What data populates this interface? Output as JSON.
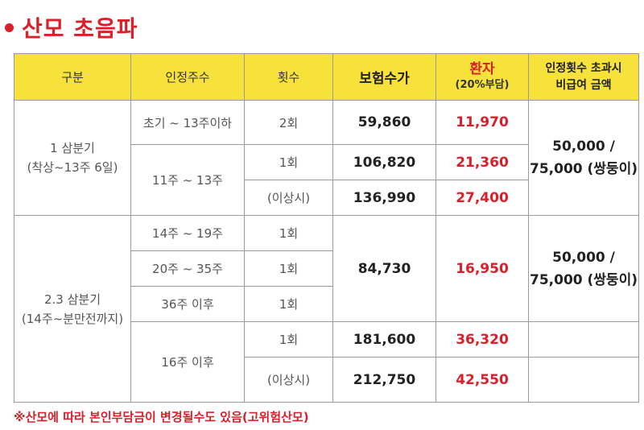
{
  "title": "산모 초음파",
  "headers": {
    "category": "구분",
    "weeks": "인정주수",
    "count": "횟수",
    "fee": "보험수가",
    "patient": "환자",
    "patient_sub": "(20%부담)",
    "over_line1": "인정횟수 초과시",
    "over_line2": "비급여 금액"
  },
  "section1": {
    "label_line1": "1 삼분기",
    "label_line2": "(착상~13주 6일)",
    "row1": {
      "weeks": "초기 ~ 13주이하",
      "count": "2회",
      "fee": "59,860",
      "patient": "11,970"
    },
    "row23_weeks": "11주 ~ 13주",
    "row2": {
      "count": "1회",
      "fee": "106,820",
      "patient": "21,360"
    },
    "row3": {
      "count": "(이상시)",
      "fee": "136,990",
      "patient": "27,400"
    },
    "over_line1": "50,000 /",
    "over_line2": "75,000 (쌍둥이)"
  },
  "section2": {
    "label_line1": "2.3 삼분기",
    "label_line2": "(14주~분만전까지)",
    "row1": {
      "weeks": "14주 ~ 19주",
      "count": "1회"
    },
    "row2": {
      "weeks": "20주 ~ 35주",
      "count": "1회"
    },
    "row3": {
      "weeks": "36주 이후",
      "count": "1회"
    },
    "shared_fee": "84,730",
    "shared_patient": "16,950",
    "over_line1": "50,000 /",
    "over_line2": "75,000 (쌍둥이)",
    "row45_weeks": "16주 이후",
    "row4": {
      "count": "1회",
      "fee": "181,600",
      "patient": "36,320"
    },
    "row5": {
      "count": "(이상시)",
      "fee": "212,750",
      "patient": "42,550"
    }
  },
  "note": "※산모에 따라 본인부담금이 변경될수도 있음(고위험산모)"
}
